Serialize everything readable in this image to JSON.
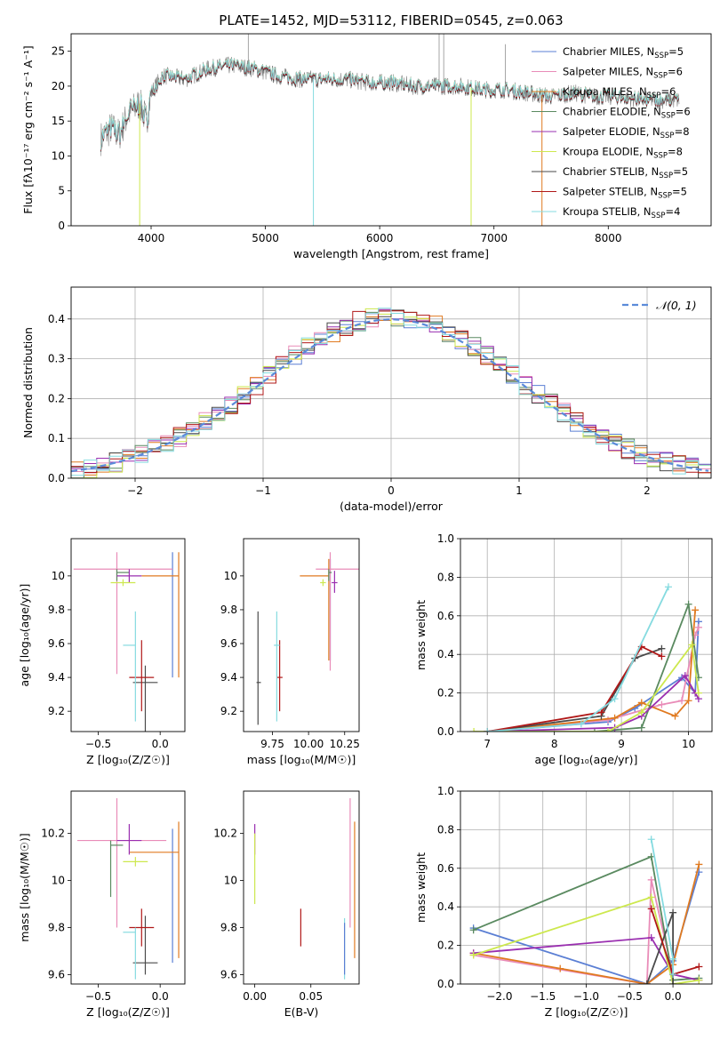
{
  "figure_title": "PLATE=1452, MJD=53112, FIBERID=0545, z=0.063",
  "colors": {
    "Chabrier MILES": "#5b7fd4",
    "Salpeter MILES": "#e98cb8",
    "Kroupa MILES": "#e07a20",
    "Chabrier ELODIE": "#5a8a60",
    "Salpeter ELODIE": "#9a2fb0",
    "Kroupa ELODIE": "#cde84e",
    "Chabrier STELIB": "#4a4a4a",
    "Salpeter STELIB": "#b01818",
    "Kroupa STELIB": "#86dbe0"
  },
  "chart_data": [
    {
      "id": "spectrum",
      "type": "line",
      "xlabel": "wavelength [Angstrom, rest frame]",
      "ylabel": "Flux [f_λ 10^-17 erg cm^-2 s^-1 A^-1]",
      "xlim": [
        3300,
        8900
      ],
      "ylim": [
        0,
        27.5
      ],
      "xticks": [
        4000,
        5000,
        6000,
        7000,
        8000
      ],
      "yticks": [
        0,
        5,
        10,
        15,
        20,
        25
      ],
      "grid": false,
      "legend_position": "upper right",
      "data_color": "#808080",
      "data_profile": [
        [
          3560,
          12.5
        ],
        [
          3650,
          14
        ],
        [
          3720,
          13
        ],
        [
          3800,
          16
        ],
        [
          3900,
          17.5
        ],
        [
          3960,
          15
        ],
        [
          4000,
          19
        ],
        [
          4100,
          21.5
        ],
        [
          4300,
          21
        ],
        [
          4500,
          22.5
        ],
        [
          4700,
          23
        ],
        [
          4900,
          22.5
        ],
        [
          5100,
          21.5
        ],
        [
          5300,
          21
        ],
        [
          5500,
          21
        ],
        [
          5700,
          21
        ],
        [
          5900,
          20.5
        ],
        [
          6100,
          20.5
        ],
        [
          6300,
          20
        ],
        [
          6500,
          20
        ],
        [
          6700,
          20
        ],
        [
          6900,
          19.5
        ],
        [
          7100,
          19.5
        ],
        [
          7300,
          19
        ],
        [
          7500,
          18.5
        ],
        [
          7700,
          19
        ],
        [
          7900,
          18.5
        ],
        [
          8100,
          18.5
        ],
        [
          8300,
          18
        ],
        [
          8500,
          18
        ],
        [
          8620,
          18
        ]
      ],
      "series": [
        {
          "name": "Chabrier MILES",
          "nssp": "5"
        },
        {
          "name": "Salpeter MILES",
          "nssp": "6"
        },
        {
          "name": "Kroupa MILES",
          "nssp": "6"
        },
        {
          "name": "Chabrier ELODIE",
          "nssp": "6"
        },
        {
          "name": "Salpeter ELODIE",
          "nssp": "8"
        },
        {
          "name": "Kroupa ELODIE",
          "nssp": "8"
        },
        {
          "name": "Chabrier STELIB",
          "nssp": "5"
        },
        {
          "name": "Salpeter STELIB",
          "nssp": "5"
        },
        {
          "name": "Kroupa STELIB",
          "nssp": "4"
        }
      ]
    },
    {
      "id": "residuals",
      "type": "step-histogram",
      "xlabel": "(data-model)/error",
      "ylabel": "Normed distribution",
      "xlim": [
        -2.5,
        2.5
      ],
      "ylim": [
        0,
        0.48
      ],
      "xticks": [
        -2,
        -1,
        0,
        1,
        2
      ],
      "xticklabels": [
        "−2",
        "−1",
        "0",
        "1",
        "2"
      ],
      "yticks": [
        0.0,
        0.1,
        0.2,
        0.3,
        0.4
      ],
      "grid": true,
      "bin_width": 0.1,
      "reference": {
        "name": "𝒩(0, 1)",
        "color": "#5b8bd9"
      },
      "legend_position": "upper right"
    },
    {
      "id": "age-vs-Z",
      "type": "errorbar",
      "xlabel": "Z [log10(Z/Z☉)]",
      "ylabel": "age [log10(age/yr)]",
      "xlim": [
        -0.72,
        0.2
      ],
      "ylim": [
        9.08,
        10.22
      ],
      "xticks": [
        -0.5,
        0.0
      ],
      "xticklabels": [
        "−0.5",
        "0.0"
      ],
      "yticks": [
        9.2,
        9.4,
        9.6,
        9.8,
        10.0
      ],
      "grid": false,
      "points": [
        {
          "series": "Chabrier MILES",
          "x": 0.1,
          "xerr": [
            0.0,
            0.0
          ],
          "y": 10.0,
          "yerr": [
            0.6,
            0.14
          ]
        },
        {
          "series": "Salpeter MILES",
          "x": -0.35,
          "xerr": [
            0.35,
            0.45
          ],
          "y": 10.04,
          "yerr": [
            0.62,
            0.1
          ]
        },
        {
          "series": "Kroupa MILES",
          "x": 0.15,
          "xerr": [
            0.3,
            0.0
          ],
          "y": 10.0,
          "yerr": [
            0.6,
            0.14
          ]
        },
        {
          "series": "Chabrier ELODIE",
          "x": -0.35,
          "xerr": [
            0.0,
            0.1
          ],
          "y": 10.02,
          "yerr": [
            0.05,
            0.02
          ]
        },
        {
          "series": "Salpeter ELODIE",
          "x": -0.25,
          "xerr": [
            0.1,
            0.1
          ],
          "y": 10.0,
          "yerr": [
            0.04,
            0.04
          ]
        },
        {
          "series": "Kroupa ELODIE",
          "x": -0.3,
          "xerr": [
            0.1,
            0.1
          ],
          "y": 9.96,
          "yerr": [
            0.02,
            0.02
          ]
        },
        {
          "series": "Chabrier STELIB",
          "x": -0.12,
          "xerr": [
            0.1,
            0.1
          ],
          "y": 9.37,
          "yerr": [
            0.3,
            0.1
          ]
        },
        {
          "series": "Salpeter STELIB",
          "x": -0.15,
          "xerr": [
            0.1,
            0.1
          ],
          "y": 9.4,
          "yerr": [
            0.2,
            0.22
          ]
        },
        {
          "series": "Kroupa STELIB",
          "x": -0.2,
          "xerr": [
            0.1,
            0.0
          ],
          "y": 9.59,
          "yerr": [
            0.45,
            0.2
          ]
        }
      ]
    },
    {
      "id": "age-vs-mass",
      "type": "errorbar",
      "xlabel": "mass [log10(M/M☉)]",
      "xlim": [
        9.55,
        10.35
      ],
      "ylim": [
        9.08,
        10.22
      ],
      "xticks": [
        9.75,
        10.0,
        10.25
      ],
      "xticklabels": [
        "9.75",
        "10.00",
        "10.25"
      ],
      "yticks": [
        9.2,
        9.4,
        9.6,
        9.8,
        10.0
      ],
      "grid": false,
      "points": [
        {
          "series": "Chabrier MILES",
          "x": 10.15,
          "xerr": [
            0.0,
            0.0
          ],
          "y": 10.0,
          "yerr": [
            0.5,
            0.1
          ]
        },
        {
          "series": "Salpeter MILES",
          "x": 10.15,
          "xerr": [
            0.1,
            0.3
          ],
          "y": 10.04,
          "yerr": [
            0.6,
            0.1
          ]
        },
        {
          "series": "Kroupa MILES",
          "x": 10.14,
          "xerr": [
            0.2,
            0.0
          ],
          "y": 10.0,
          "yerr": [
            0.5,
            0.1
          ]
        },
        {
          "series": "Chabrier ELODIE",
          "x": 10.14,
          "xerr": [
            0.0,
            0.02
          ],
          "y": 10.02,
          "yerr": [
            0.05,
            0.02
          ]
        },
        {
          "series": "Salpeter ELODIE",
          "x": 10.18,
          "xerr": [
            0.02,
            0.02
          ],
          "y": 9.96,
          "yerr": [
            0.06,
            0.07
          ]
        },
        {
          "series": "Kroupa ELODIE",
          "x": 10.1,
          "xerr": [
            0.02,
            0.02
          ],
          "y": 9.96,
          "yerr": [
            0.02,
            0.02
          ]
        },
        {
          "series": "Chabrier STELIB",
          "x": 9.65,
          "xerr": [
            0.01,
            0.02
          ],
          "y": 9.37,
          "yerr": [
            0.25,
            0.42
          ]
        },
        {
          "series": "Salpeter STELIB",
          "x": 9.8,
          "xerr": [
            0.02,
            0.02
          ],
          "y": 9.4,
          "yerr": [
            0.2,
            0.22
          ]
        },
        {
          "series": "Kroupa STELIB",
          "x": 9.78,
          "xerr": [
            0.02,
            0.02
          ],
          "y": 9.59,
          "yerr": [
            0.45,
            0.2
          ]
        }
      ]
    },
    {
      "id": "weight-vs-age",
      "type": "line",
      "xlabel": "age [log10(age/yr)]",
      "ylabel": "mass weight",
      "xlim": [
        6.6,
        10.35
      ],
      "ylim": [
        0,
        1.0
      ],
      "xticks": [
        7,
        8,
        9,
        10
      ],
      "yticks": [
        0.0,
        0.2,
        0.4,
        0.6,
        0.8,
        1.0
      ],
      "grid": true,
      "series": [
        {
          "name": "Chabrier MILES",
          "x": [
            7.0,
            8.8,
            9.2,
            9.9,
            10.1,
            10.15
          ],
          "y": [
            0.0,
            0.05,
            0.12,
            0.28,
            0.2,
            0.57
          ]
        },
        {
          "name": "Salpeter MILES",
          "x": [
            7.0,
            8.8,
            9.6,
            9.9,
            10.1,
            10.15
          ],
          "y": [
            0.0,
            0.06,
            0.14,
            0.16,
            0.5,
            0.54
          ]
        },
        {
          "name": "Kroupa MILES",
          "x": [
            7.0,
            8.9,
            9.3,
            9.8,
            10.0,
            10.1
          ],
          "y": [
            0.0,
            0.07,
            0.15,
            0.08,
            0.16,
            0.63
          ]
        },
        {
          "name": "Chabrier ELODIE",
          "x": [
            7.0,
            8.6,
            9.3,
            10.0,
            10.15
          ],
          "y": [
            0.0,
            0.0,
            0.02,
            0.66,
            0.28
          ]
        },
        {
          "name": "Salpeter ELODIE",
          "x": [
            7.0,
            8.9,
            9.3,
            9.95,
            10.1,
            10.15
          ],
          "y": [
            0.0,
            0.02,
            0.08,
            0.29,
            0.2,
            0.17
          ]
        },
        {
          "name": "Kroupa ELODIE",
          "x": [
            6.8,
            8.8,
            9.3,
            10.05,
            10.15
          ],
          "y": [
            0.0,
            0.0,
            0.1,
            0.45,
            0.2
          ]
        },
        {
          "name": "Chabrier STELIB",
          "x": [
            7.0,
            8.7,
            9.2,
            9.6
          ],
          "y": [
            0.0,
            0.08,
            0.38,
            0.43
          ]
        },
        {
          "name": "Salpeter STELIB",
          "x": [
            7.0,
            8.7,
            9.3,
            9.6
          ],
          "y": [
            0.0,
            0.1,
            0.44,
            0.39
          ]
        },
        {
          "name": "Kroupa STELIB",
          "x": [
            7.0,
            8.4,
            8.9,
            9.7
          ],
          "y": [
            0.0,
            0.04,
            0.17,
            0.75
          ]
        }
      ]
    },
    {
      "id": "mass-vs-Z",
      "type": "errorbar",
      "xlabel": "Z [log10(Z/Z☉)]",
      "ylabel": "mass [log10(M/M☉)]",
      "xlim": [
        -0.72,
        0.2
      ],
      "ylim": [
        9.56,
        10.38
      ],
      "xticks": [
        -0.5,
        0.0
      ],
      "xticklabels": [
        "−0.5",
        "0.0"
      ],
      "yticks": [
        9.6,
        9.8,
        10.0,
        10.2
      ],
      "grid": false,
      "points": [
        {
          "series": "Chabrier MILES",
          "x": 0.1,
          "xerr": [
            0.0,
            0.0
          ],
          "y": 10.15,
          "yerr": [
            0.5,
            0.07
          ]
        },
        {
          "series": "Salpeter MILES",
          "x": -0.35,
          "xerr": [
            0.32,
            0.4
          ],
          "y": 10.17,
          "yerr": [
            0.37,
            0.18
          ]
        },
        {
          "series": "Kroupa MILES",
          "x": 0.15,
          "xerr": [
            0.4,
            0.0
          ],
          "y": 10.12,
          "yerr": [
            0.45,
            0.13
          ]
        },
        {
          "series": "Chabrier ELODIE",
          "x": -0.4,
          "xerr": [
            0.0,
            0.1
          ],
          "y": 10.15,
          "yerr": [
            0.22,
            0.02
          ]
        },
        {
          "series": "Salpeter ELODIE",
          "x": -0.25,
          "xerr": [
            0.1,
            0.1
          ],
          "y": 10.17,
          "yerr": [
            0.06,
            0.07
          ]
        },
        {
          "series": "Kroupa ELODIE",
          "x": -0.2,
          "xerr": [
            0.1,
            0.1
          ],
          "y": 10.08,
          "yerr": [
            0.02,
            0.02
          ]
        },
        {
          "series": "Chabrier STELIB",
          "x": -0.12,
          "xerr": [
            0.1,
            0.1
          ],
          "y": 9.65,
          "yerr": [
            0.05,
            0.2
          ]
        },
        {
          "series": "Salpeter STELIB",
          "x": -0.15,
          "xerr": [
            0.1,
            0.1
          ],
          "y": 9.8,
          "yerr": [
            0.08,
            0.08
          ]
        },
        {
          "series": "Kroupa STELIB",
          "x": -0.2,
          "xerr": [
            0.1,
            0.0
          ],
          "y": 9.78,
          "yerr": [
            0.2,
            0.02
          ]
        }
      ]
    },
    {
      "id": "mass-vs-ebv",
      "type": "errorbar",
      "xlabel": "E(B-V)",
      "xlim": [
        -0.01,
        0.093
      ],
      "ylim": [
        9.56,
        10.38
      ],
      "xticks": [
        0.0,
        0.05
      ],
      "xticklabels": [
        "0.00",
        "0.05"
      ],
      "yticks": [
        9.6,
        9.8,
        10.0,
        10.2
      ],
      "grid": false,
      "points": [
        {
          "series": "Salpeter MILES",
          "x": 0.085,
          "xerr": [
            0,
            0
          ],
          "y": 10.17,
          "yerr": [
            0.37,
            0.18
          ]
        },
        {
          "series": "Kroupa MILES",
          "x": 0.089,
          "xerr": [
            0,
            0
          ],
          "y": 10.12,
          "yerr": [
            0.45,
            0.13
          ]
        },
        {
          "series": "Salpeter ELODIE",
          "x": 0.0,
          "xerr": [
            0,
            0
          ],
          "y": 10.17,
          "yerr": [
            0.06,
            0.07
          ]
        },
        {
          "series": "Kroupa ELODIE",
          "x": 0.0,
          "xerr": [
            0,
            0
          ],
          "y": 10.08,
          "yerr": [
            0.18,
            0.12
          ]
        },
        {
          "series": "Salpeter STELIB",
          "x": 0.041,
          "xerr": [
            0,
            0
          ],
          "y": 9.8,
          "yerr": [
            0.08,
            0.08
          ]
        },
        {
          "series": "Kroupa STELIB",
          "x": 0.08,
          "xerr": [
            0,
            0
          ],
          "y": 9.72,
          "yerr": [
            0.14,
            0.12
          ]
        },
        {
          "series": "Chabrier MILES",
          "x": 0.08,
          "xerr": [
            0,
            0
          ],
          "y": 9.72,
          "yerr": [
            0.12,
            0.1
          ]
        }
      ]
    },
    {
      "id": "weight-vs-Z",
      "type": "line",
      "xlabel": "Z [log10(Z/Z☉)]",
      "ylabel": "mass weight",
      "xlim": [
        -2.45,
        0.45
      ],
      "ylim": [
        0,
        1.0
      ],
      "xticks": [
        -2.0,
        -1.5,
        -1.0,
        -0.5,
        0.0
      ],
      "xticklabels": [
        "−2.0",
        "−1.5",
        "−1.0",
        "−0.5",
        "0.0"
      ],
      "yticks": [
        0.0,
        0.2,
        0.4,
        0.6,
        0.8,
        1.0
      ],
      "grid": true,
      "series": [
        {
          "name": "Chabrier MILES",
          "x": [
            -2.3,
            -0.3,
            0.0,
            0.3
          ],
          "y": [
            0.29,
            0.0,
            0.12,
            0.58
          ]
        },
        {
          "name": "Salpeter MILES",
          "x": [
            -2.3,
            -0.3,
            -0.25,
            0.0,
            0.3
          ],
          "y": [
            0.15,
            0.0,
            0.54,
            0.05,
            0.02
          ]
        },
        {
          "name": "Kroupa MILES",
          "x": [
            -2.3,
            -1.3,
            -0.3,
            0.0,
            0.3
          ],
          "y": [
            0.16,
            0.08,
            0.0,
            0.1,
            0.62
          ]
        },
        {
          "name": "Chabrier ELODIE",
          "x": [
            -2.3,
            -0.25,
            0.0,
            0.3
          ],
          "y": [
            0.28,
            0.66,
            0.02,
            0.03
          ]
        },
        {
          "name": "Salpeter ELODIE",
          "x": [
            -2.3,
            -0.25,
            0.0,
            0.3
          ],
          "y": [
            0.16,
            0.24,
            0.05,
            0.02
          ]
        },
        {
          "name": "Kroupa ELODIE",
          "x": [
            -2.3,
            -0.25,
            0.0,
            0.3
          ],
          "y": [
            0.15,
            0.45,
            0.0,
            0.02
          ]
        },
        {
          "name": "Chabrier STELIB",
          "x": [
            -0.3,
            0.0,
            0.0
          ],
          "y": [
            0.0,
            0.37,
            0.0
          ]
        },
        {
          "name": "Salpeter STELIB",
          "x": [
            -0.25,
            0.0,
            0.3
          ],
          "y": [
            0.39,
            0.05,
            0.09
          ]
        },
        {
          "name": "Kroupa STELIB",
          "x": [
            -0.25,
            0.0,
            0.0
          ],
          "y": [
            0.75,
            0.13,
            0.05
          ]
        }
      ]
    }
  ]
}
